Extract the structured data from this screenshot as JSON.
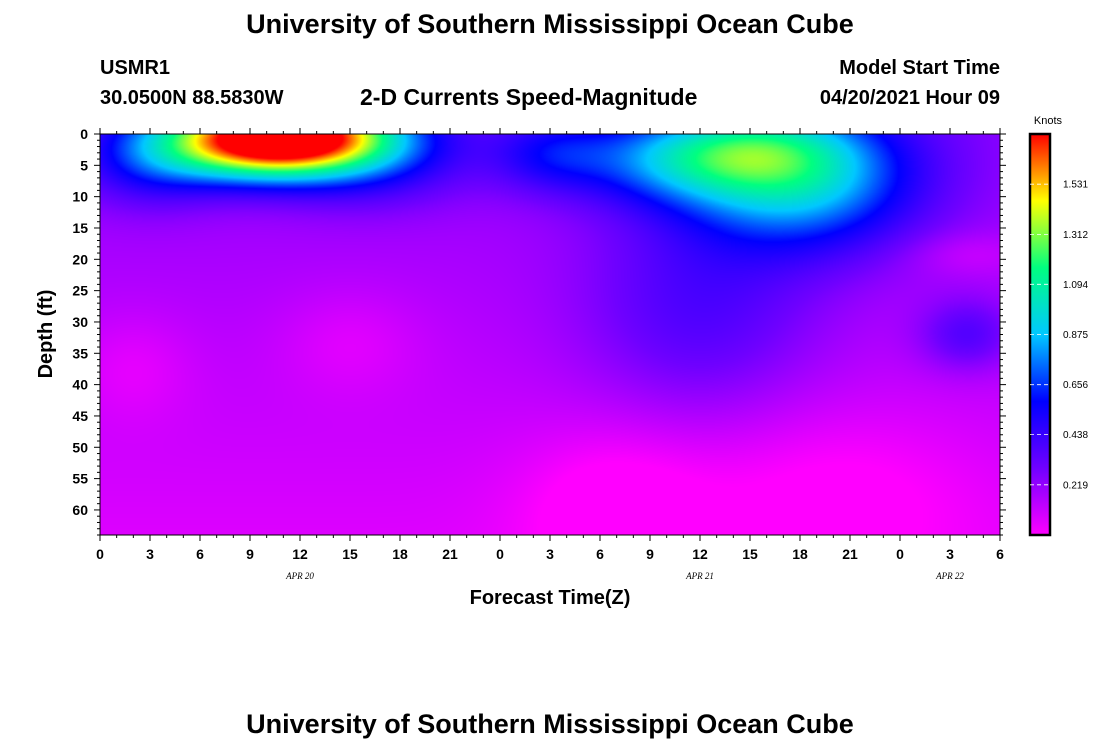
{
  "header": {
    "title": "University of Southern Mississippi Ocean Cube",
    "station": "USMR1",
    "coords": "30.0500N  88.5830W",
    "subtitle": "2-D Currents Speed-Magnitude",
    "model_start_label": "Model Start Time",
    "model_start_value": "04/20/2021 Hour 09"
  },
  "footer": {
    "title": "University of Southern Mississippi Ocean Cube"
  },
  "chart_data": {
    "type": "heatmap",
    "xlabel": "Forecast Time(Z)",
    "ylabel": "Depth (ft)",
    "x_range_hours": [
      0,
      54
    ],
    "y_range_ft": [
      0,
      64
    ],
    "x_tick_labels": [
      "0",
      "3",
      "6",
      "9",
      "12",
      "15",
      "18",
      "21",
      "0",
      "3",
      "6",
      "9",
      "12",
      "15",
      "18",
      "21",
      "0",
      "3",
      "6"
    ],
    "y_tick_labels": [
      "0",
      "5",
      "10",
      "15",
      "20",
      "25",
      "30",
      "35",
      "40",
      "45",
      "50",
      "55",
      "60"
    ],
    "date_labels": [
      {
        "text": "APR 20",
        "hour": 12
      },
      {
        "text": "APR 21",
        "hour": 36
      },
      {
        "text": "APR 22",
        "hour": 51
      }
    ],
    "colorbar": {
      "unit": "Knots",
      "ticks": [
        "1.531",
        "1.312",
        "1.094",
        "0.875",
        "0.656",
        "0.438",
        "0.219"
      ],
      "range": [
        0,
        1.75
      ],
      "colors": [
        "#ff00ff",
        "#7000ff",
        "#0000ff",
        "#00c8ff",
        "#00ff80",
        "#ffff00",
        "#ff0000"
      ]
    },
    "field_features": [
      {
        "hour": 11,
        "depth": 0,
        "speed": 1.6,
        "sx": 4.5,
        "sy": 4
      },
      {
        "hour": 9,
        "depth": 3,
        "speed": 0.45,
        "sx": 4,
        "sy": 4
      },
      {
        "hour": 3,
        "depth": 4,
        "speed": 0.32,
        "sx": 3,
        "sy": 5
      },
      {
        "hour": 16,
        "depth": 4,
        "speed": 0.3,
        "sx": 4,
        "sy": 5
      },
      {
        "hour": 35,
        "depth": 4,
        "speed": 0.48,
        "sx": 5,
        "sy": 5
      },
      {
        "hour": 42,
        "depth": 7,
        "speed": 0.7,
        "sx": 5,
        "sy": 8
      },
      {
        "hour": 39,
        "depth": 2,
        "speed": 0.25,
        "sx": 4,
        "sy": 4
      },
      {
        "hour": 27,
        "depth": 3,
        "speed": 0.25,
        "sx": 2.5,
        "sy": 4
      },
      {
        "hour": 36,
        "depth": 28,
        "speed": 0.22,
        "sx": 5,
        "sy": 12
      },
      {
        "hour": 52,
        "depth": 32,
        "speed": 0.22,
        "sx": 2,
        "sy": 4
      },
      {
        "hour": 31,
        "depth": 60,
        "speed": -0.15,
        "sx": 4,
        "sy": 9
      },
      {
        "hour": 44,
        "depth": 58,
        "speed": -0.12,
        "sx": 6,
        "sy": 10
      },
      {
        "hour": 2,
        "depth": 37,
        "speed": -0.08,
        "sx": 2.5,
        "sy": 6
      },
      {
        "hour": 15,
        "depth": 33,
        "speed": -0.08,
        "sx": 3,
        "sy": 6
      },
      {
        "hour": 52,
        "depth": 19,
        "speed": -0.08,
        "sx": 2.5,
        "sy": 2.5
      }
    ]
  }
}
